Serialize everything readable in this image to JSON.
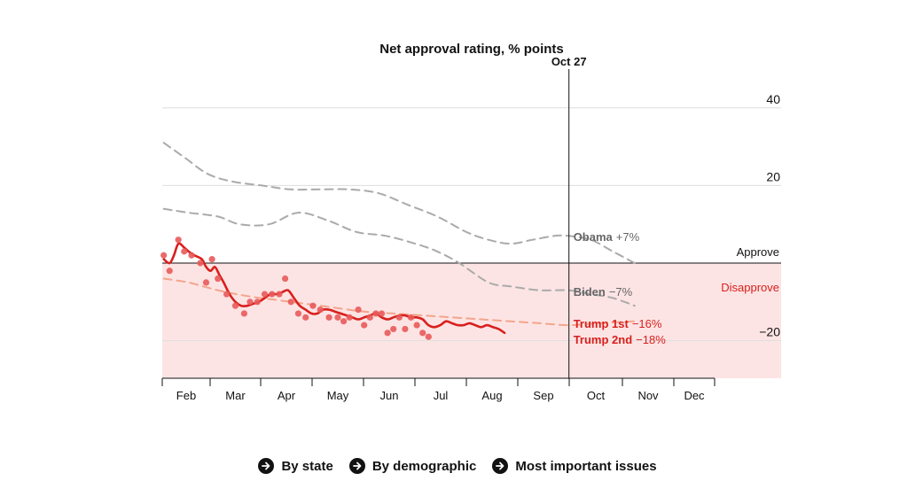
{
  "chart_data": {
    "type": "line",
    "title": "Net approval rating, % points",
    "ylim": [
      -30,
      40
    ],
    "yticks": [
      {
        "value": 40,
        "label": "40"
      },
      {
        "value": 20,
        "label": "20"
      },
      {
        "value": -20,
        "label": "−20"
      }
    ],
    "months": [
      "Feb",
      "Mar",
      "Apr",
      "May",
      "Jun",
      "Jul",
      "Aug",
      "Sep",
      "Oct",
      "Nov",
      "Dec"
    ],
    "zones": {
      "approve": "Approve",
      "disapprove": "Disapprove"
    },
    "marker": {
      "label": "Oct 27",
      "day": 300
    },
    "series": [
      {
        "name": "Obama",
        "label_name": "Obama",
        "label_value": "+7%",
        "style": "dashed",
        "color": "#aaaaaa",
        "points": [
          [
            23,
            31
          ],
          [
            38,
            27
          ],
          [
            53,
            23
          ],
          [
            70,
            21
          ],
          [
            90,
            20
          ],
          [
            110,
            19
          ],
          [
            130,
            19
          ],
          [
            150,
            19
          ],
          [
            170,
            18
          ],
          [
            190,
            15
          ],
          [
            210,
            12
          ],
          [
            230,
            8
          ],
          [
            245,
            6
          ],
          [
            260,
            5
          ],
          [
            275,
            6
          ],
          [
            290,
            7
          ],
          [
            300,
            7
          ],
          [
            315,
            6
          ],
          [
            330,
            3
          ],
          [
            345,
            0
          ]
        ]
      },
      {
        "name": "Biden",
        "label_name": "Biden",
        "label_value": "−7%",
        "style": "dashed",
        "color": "#aaaaaa",
        "points": [
          [
            23,
            14
          ],
          [
            40,
            13
          ],
          [
            60,
            12
          ],
          [
            75,
            10
          ],
          [
            95,
            10
          ],
          [
            115,
            13
          ],
          [
            135,
            11
          ],
          [
            155,
            8
          ],
          [
            175,
            7
          ],
          [
            195,
            5
          ],
          [
            210,
            3
          ],
          [
            225,
            0
          ],
          [
            245,
            -5
          ],
          [
            260,
            -6
          ],
          [
            280,
            -7
          ],
          [
            300,
            -7
          ],
          [
            315,
            -8
          ],
          [
            330,
            -9
          ],
          [
            345,
            -11
          ]
        ]
      },
      {
        "name": "Trump 1st",
        "label_name": "Trump 1st",
        "label_value": "−16%",
        "style": "dashed",
        "color": "#f2a58c",
        "points": [
          [
            23,
            -4
          ],
          [
            40,
            -5
          ],
          [
            60,
            -7
          ],
          [
            80,
            -8.5
          ],
          [
            100,
            -9.5
          ],
          [
            120,
            -10.5
          ],
          [
            140,
            -11.5
          ],
          [
            160,
            -12.5
          ],
          [
            180,
            -13
          ],
          [
            200,
            -13.5
          ],
          [
            220,
            -14
          ],
          [
            240,
            -14.5
          ],
          [
            260,
            -15
          ],
          [
            280,
            -15.5
          ],
          [
            300,
            -16
          ],
          [
            320,
            -15.5
          ],
          [
            345,
            -15
          ]
        ]
      },
      {
        "name": "Trump 2nd",
        "label_name": "Trump 2nd",
        "label_value": "−18%",
        "style": "solid",
        "color": "#d8201d",
        "points": [
          [
            23,
            1
          ],
          [
            27,
            0
          ],
          [
            30,
            2
          ],
          [
            33,
            5
          ],
          [
            37,
            4
          ],
          [
            40,
            3
          ],
          [
            44,
            2
          ],
          [
            49,
            1
          ],
          [
            52,
            -1
          ],
          [
            55,
            -2
          ],
          [
            58,
            -1
          ],
          [
            61,
            -3
          ],
          [
            64,
            -5
          ],
          [
            68,
            -8
          ],
          [
            72,
            -10
          ],
          [
            76,
            -11
          ],
          [
            80,
            -11
          ],
          [
            84,
            -10.5
          ],
          [
            88,
            -10
          ],
          [
            92,
            -9
          ],
          [
            96,
            -8
          ],
          [
            100,
            -8
          ],
          [
            104,
            -7.5
          ],
          [
            108,
            -7
          ],
          [
            112,
            -9
          ],
          [
            116,
            -11
          ],
          [
            120,
            -12
          ],
          [
            124,
            -13
          ],
          [
            128,
            -13
          ],
          [
            132,
            -12
          ],
          [
            136,
            -12
          ],
          [
            140,
            -12.5
          ],
          [
            144,
            -13
          ],
          [
            148,
            -13.5
          ],
          [
            152,
            -14
          ],
          [
            156,
            -14.5
          ],
          [
            160,
            -14
          ],
          [
            164,
            -13.5
          ],
          [
            168,
            -13
          ],
          [
            172,
            -14
          ],
          [
            176,
            -14.5
          ],
          [
            180,
            -14
          ],
          [
            184,
            -13.5
          ],
          [
            188,
            -13.5
          ],
          [
            192,
            -14
          ],
          [
            196,
            -14
          ],
          [
            200,
            -14.5
          ],
          [
            204,
            -16
          ],
          [
            208,
            -16.5
          ],
          [
            212,
            -16
          ],
          [
            216,
            -15
          ],
          [
            220,
            -15.5
          ],
          [
            224,
            -16
          ],
          [
            228,
            -16
          ],
          [
            232,
            -15.5
          ],
          [
            236,
            -16
          ],
          [
            240,
            -16.5
          ],
          [
            244,
            -16
          ],
          [
            248,
            -16.5
          ],
          [
            252,
            -17
          ],
          [
            256,
            -18
          ]
        ]
      }
    ],
    "polls": [
      [
        23,
        2
      ],
      [
        27,
        -2
      ],
      [
        33,
        6
      ],
      [
        37,
        3
      ],
      [
        42,
        2
      ],
      [
        48,
        0
      ],
      [
        52,
        -5
      ],
      [
        56,
        1
      ],
      [
        60,
        -4
      ],
      [
        66,
        -8
      ],
      [
        72,
        -11
      ],
      [
        78,
        -13
      ],
      [
        82,
        -10
      ],
      [
        87,
        -10
      ],
      [
        92,
        -8
      ],
      [
        97,
        -8
      ],
      [
        102,
        -8
      ],
      [
        106,
        -4
      ],
      [
        110,
        -10
      ],
      [
        115,
        -13
      ],
      [
        120,
        -14
      ],
      [
        125,
        -11
      ],
      [
        130,
        -12
      ],
      [
        136,
        -14
      ],
      [
        142,
        -14
      ],
      [
        146,
        -15
      ],
      [
        150,
        -14
      ],
      [
        156,
        -12
      ],
      [
        160,
        -16
      ],
      [
        164,
        -14
      ],
      [
        168,
        -13
      ],
      [
        172,
        -13
      ],
      [
        176,
        -18
      ],
      [
        180,
        -17
      ],
      [
        184,
        -14
      ],
      [
        188,
        -17
      ],
      [
        192,
        -14
      ],
      [
        196,
        -16
      ],
      [
        200,
        -18
      ],
      [
        204,
        -19
      ]
    ]
  },
  "nav": [
    {
      "label": "By state"
    },
    {
      "label": "By demographic"
    },
    {
      "label": "Most important issues"
    }
  ],
  "colors": {
    "disapprove_band": "#fde4e4",
    "trump_red": "#d8201d",
    "poll_dot": "#e85a5a",
    "grey_dash": "#aaaaaa",
    "grid": "#dddddd",
    "text": "#121212"
  }
}
